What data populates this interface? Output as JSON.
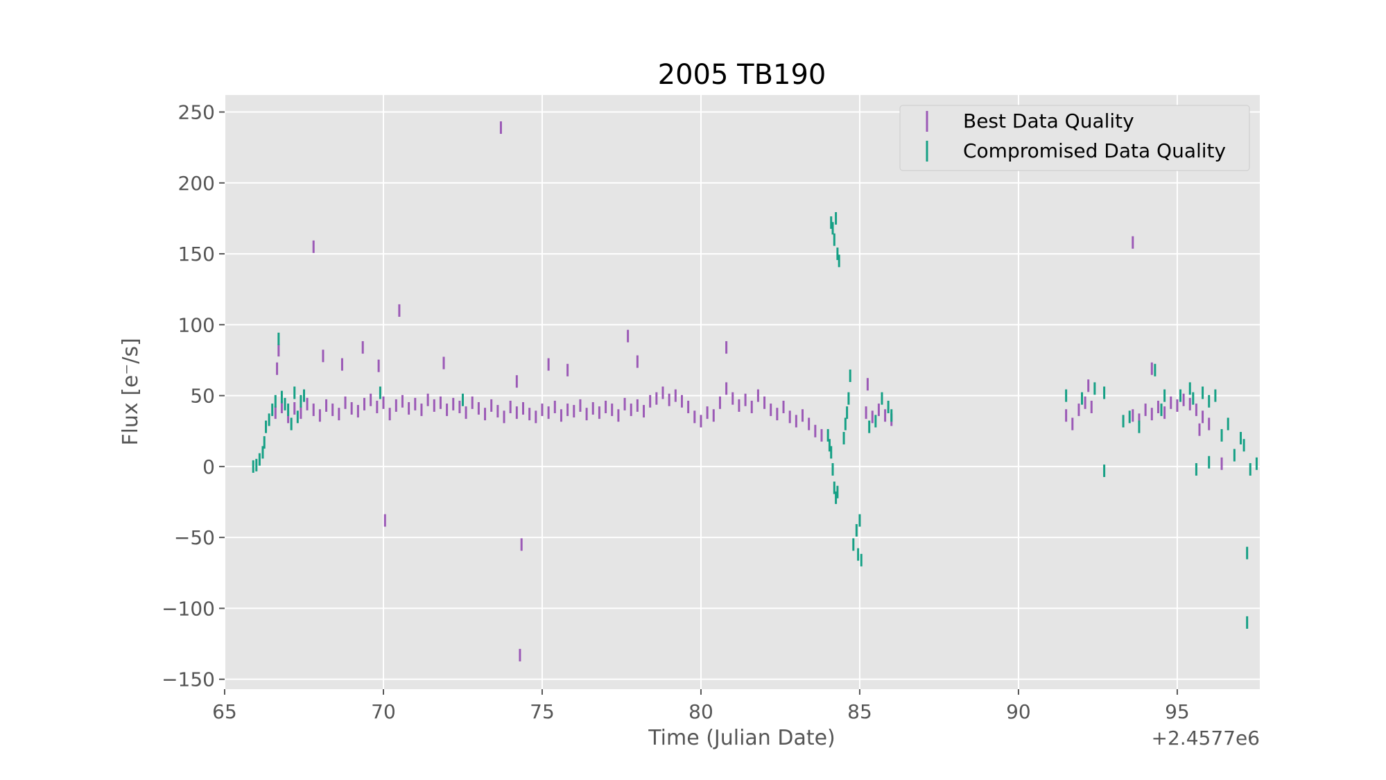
{
  "chart_data": {
    "type": "scatter",
    "title": "2005 TB190",
    "xlabel": "Time (Julian Date)",
    "ylabel": "Flux [e⁻/s]",
    "x_offset_label": "+2.4577e6",
    "x_ticks": [
      "65",
      "70",
      "75",
      "80",
      "85",
      "90",
      "95"
    ],
    "y_ticks": [
      "250",
      "200",
      "150",
      "100",
      "50",
      "0",
      "−50",
      "−100",
      "−150"
    ],
    "xlim": [
      65,
      97.6
    ],
    "ylim": [
      -157,
      262
    ],
    "grid": true,
    "legend": {
      "position": "top-right",
      "entries": [
        "Best Data Quality",
        "Compromised Data Quality"
      ]
    },
    "series": [
      {
        "name": "Best Data Quality",
        "color": "#9b59b6",
        "points": [
          [
            66.6,
            38
          ],
          [
            66.8,
            42
          ],
          [
            67.0,
            35
          ],
          [
            67.2,
            41
          ],
          [
            67.4,
            38
          ],
          [
            67.6,
            44
          ],
          [
            67.8,
            40
          ],
          [
            68.0,
            36
          ],
          [
            68.2,
            43
          ],
          [
            68.4,
            40
          ],
          [
            68.6,
            37
          ],
          [
            68.8,
            45
          ],
          [
            69.0,
            41
          ],
          [
            69.2,
            39
          ],
          [
            69.4,
            44
          ],
          [
            69.6,
            47
          ],
          [
            69.8,
            42
          ],
          [
            70.0,
            45
          ],
          [
            70.2,
            37
          ],
          [
            70.4,
            43
          ],
          [
            70.6,
            46
          ],
          [
            70.8,
            41
          ],
          [
            71.0,
            44
          ],
          [
            71.2,
            40
          ],
          [
            71.4,
            47
          ],
          [
            71.6,
            43
          ],
          [
            71.8,
            45
          ],
          [
            72.0,
            40
          ],
          [
            72.2,
            44
          ],
          [
            72.4,
            42
          ],
          [
            72.6,
            38
          ],
          [
            72.8,
            45
          ],
          [
            73.0,
            41
          ],
          [
            73.2,
            37
          ],
          [
            73.4,
            43
          ],
          [
            73.6,
            39
          ],
          [
            73.8,
            35
          ],
          [
            74.0,
            42
          ],
          [
            74.2,
            38
          ],
          [
            74.4,
            41
          ],
          [
            74.6,
            37
          ],
          [
            74.8,
            35
          ],
          [
            75.0,
            40
          ],
          [
            75.2,
            38
          ],
          [
            75.4,
            42
          ],
          [
            75.6,
            36
          ],
          [
            75.8,
            40
          ],
          [
            76.0,
            39
          ],
          [
            76.2,
            43
          ],
          [
            76.4,
            37
          ],
          [
            76.6,
            41
          ],
          [
            76.8,
            38
          ],
          [
            77.0,
            42
          ],
          [
            77.2,
            40
          ],
          [
            77.4,
            36
          ],
          [
            77.6,
            44
          ],
          [
            77.8,
            40
          ],
          [
            78.0,
            43
          ],
          [
            78.2,
            39
          ],
          [
            78.4,
            46
          ],
          [
            78.6,
            48
          ],
          [
            78.8,
            52
          ],
          [
            79.0,
            47
          ],
          [
            79.2,
            50
          ],
          [
            79.4,
            46
          ],
          [
            79.6,
            42
          ],
          [
            79.8,
            35
          ],
          [
            80.0,
            32
          ],
          [
            80.2,
            38
          ],
          [
            80.4,
            36
          ],
          [
            80.6,
            45
          ],
          [
            80.8,
            55
          ],
          [
            81.0,
            48
          ],
          [
            81.2,
            43
          ],
          [
            81.4,
            47
          ],
          [
            81.6,
            42
          ],
          [
            81.8,
            50
          ],
          [
            82.0,
            45
          ],
          [
            82.2,
            40
          ],
          [
            82.4,
            37
          ],
          [
            82.6,
            42
          ],
          [
            82.8,
            35
          ],
          [
            83.0,
            32
          ],
          [
            83.2,
            36
          ],
          [
            83.4,
            30
          ],
          [
            83.6,
            25
          ],
          [
            83.8,
            22
          ],
          [
            85.2,
            38
          ],
          [
            85.4,
            35
          ],
          [
            85.6,
            40
          ],
          [
            85.8,
            36
          ],
          [
            86.0,
            33
          ],
          [
            91.5,
            36
          ],
          [
            91.7,
            30
          ],
          [
            91.9,
            40
          ],
          [
            92.1,
            45
          ],
          [
            92.3,
            42
          ],
          [
            93.6,
            36
          ],
          [
            93.8,
            33
          ],
          [
            94.0,
            40
          ],
          [
            94.2,
            37
          ],
          [
            94.4,
            42
          ],
          [
            94.6,
            38
          ],
          [
            94.8,
            45
          ],
          [
            95.0,
            43
          ],
          [
            95.2,
            47
          ],
          [
            95.4,
            44
          ],
          [
            95.6,
            40
          ],
          [
            95.8,
            35
          ],
          [
            96.0,
            30
          ],
          [
            96.4,
            2
          ],
          [
            66.7,
            82
          ],
          [
            66.65,
            69
          ],
          [
            67.8,
            155
          ],
          [
            68.1,
            78
          ],
          [
            68.7,
            72
          ],
          [
            69.35,
            84
          ],
          [
            69.85,
            71
          ],
          [
            70.05,
            -38
          ],
          [
            70.5,
            110
          ],
          [
            71.9,
            73
          ],
          [
            73.7,
            239
          ],
          [
            74.35,
            -55
          ],
          [
            74.3,
            -133
          ],
          [
            74.2,
            60
          ],
          [
            75.2,
            72
          ],
          [
            75.8,
            68
          ],
          [
            77.7,
            92
          ],
          [
            78.0,
            74
          ],
          [
            80.8,
            84
          ],
          [
            85.25,
            58
          ],
          [
            92.2,
            57
          ],
          [
            93.6,
            158
          ],
          [
            94.2,
            69
          ],
          [
            95.7,
            26
          ]
        ]
      },
      {
        "name": "Compromised Data Quality",
        "color": "#16a085",
        "points": [
          [
            65.9,
            0
          ],
          [
            66.0,
            1
          ],
          [
            66.1,
            5
          ],
          [
            66.2,
            10
          ],
          [
            66.25,
            17
          ],
          [
            66.3,
            28
          ],
          [
            66.4,
            33
          ],
          [
            66.5,
            40
          ],
          [
            66.6,
            46
          ],
          [
            66.7,
            90
          ],
          [
            66.8,
            49
          ],
          [
            66.9,
            44
          ],
          [
            67.0,
            40
          ],
          [
            67.1,
            30
          ],
          [
            67.2,
            52
          ],
          [
            67.3,
            35
          ],
          [
            67.4,
            46
          ],
          [
            67.5,
            50
          ],
          [
            69.9,
            52
          ],
          [
            72.5,
            47
          ],
          [
            84.0,
            22
          ],
          [
            84.05,
            15
          ],
          [
            84.1,
            10
          ],
          [
            84.15,
            -2
          ],
          [
            84.2,
            -15
          ],
          [
            84.25,
            -22
          ],
          [
            84.3,
            -18
          ],
          [
            84.1,
            172
          ],
          [
            84.15,
            168
          ],
          [
            84.2,
            160
          ],
          [
            84.25,
            175
          ],
          [
            84.3,
            150
          ],
          [
            84.35,
            145
          ],
          [
            84.5,
            20
          ],
          [
            84.55,
            30
          ],
          [
            84.6,
            38
          ],
          [
            84.65,
            48
          ],
          [
            84.7,
            64
          ],
          [
            84.8,
            -55
          ],
          [
            84.9,
            -45
          ],
          [
            84.95,
            -62
          ],
          [
            85.0,
            -38
          ],
          [
            85.05,
            -66
          ],
          [
            85.3,
            28
          ],
          [
            85.5,
            32
          ],
          [
            85.7,
            48
          ],
          [
            85.9,
            42
          ],
          [
            86.0,
            36
          ],
          [
            91.5,
            50
          ],
          [
            92.0,
            48
          ],
          [
            92.4,
            55
          ],
          [
            92.7,
            -3
          ],
          [
            92.7,
            52
          ],
          [
            93.3,
            32
          ],
          [
            93.5,
            35
          ],
          [
            93.8,
            28
          ],
          [
            94.3,
            68
          ],
          [
            94.5,
            40
          ],
          [
            94.6,
            50
          ],
          [
            95.1,
            50
          ],
          [
            95.4,
            55
          ],
          [
            95.5,
            48
          ],
          [
            95.6,
            -2
          ],
          [
            95.8,
            52
          ],
          [
            96.0,
            3
          ],
          [
            96.0,
            46
          ],
          [
            96.2,
            50
          ],
          [
            96.4,
            22
          ],
          [
            96.6,
            30
          ],
          [
            96.8,
            8
          ],
          [
            97.0,
            20
          ],
          [
            97.1,
            15
          ],
          [
            97.2,
            -61
          ],
          [
            97.2,
            -110
          ],
          [
            97.3,
            -2
          ],
          [
            97.5,
            2
          ]
        ]
      }
    ]
  }
}
